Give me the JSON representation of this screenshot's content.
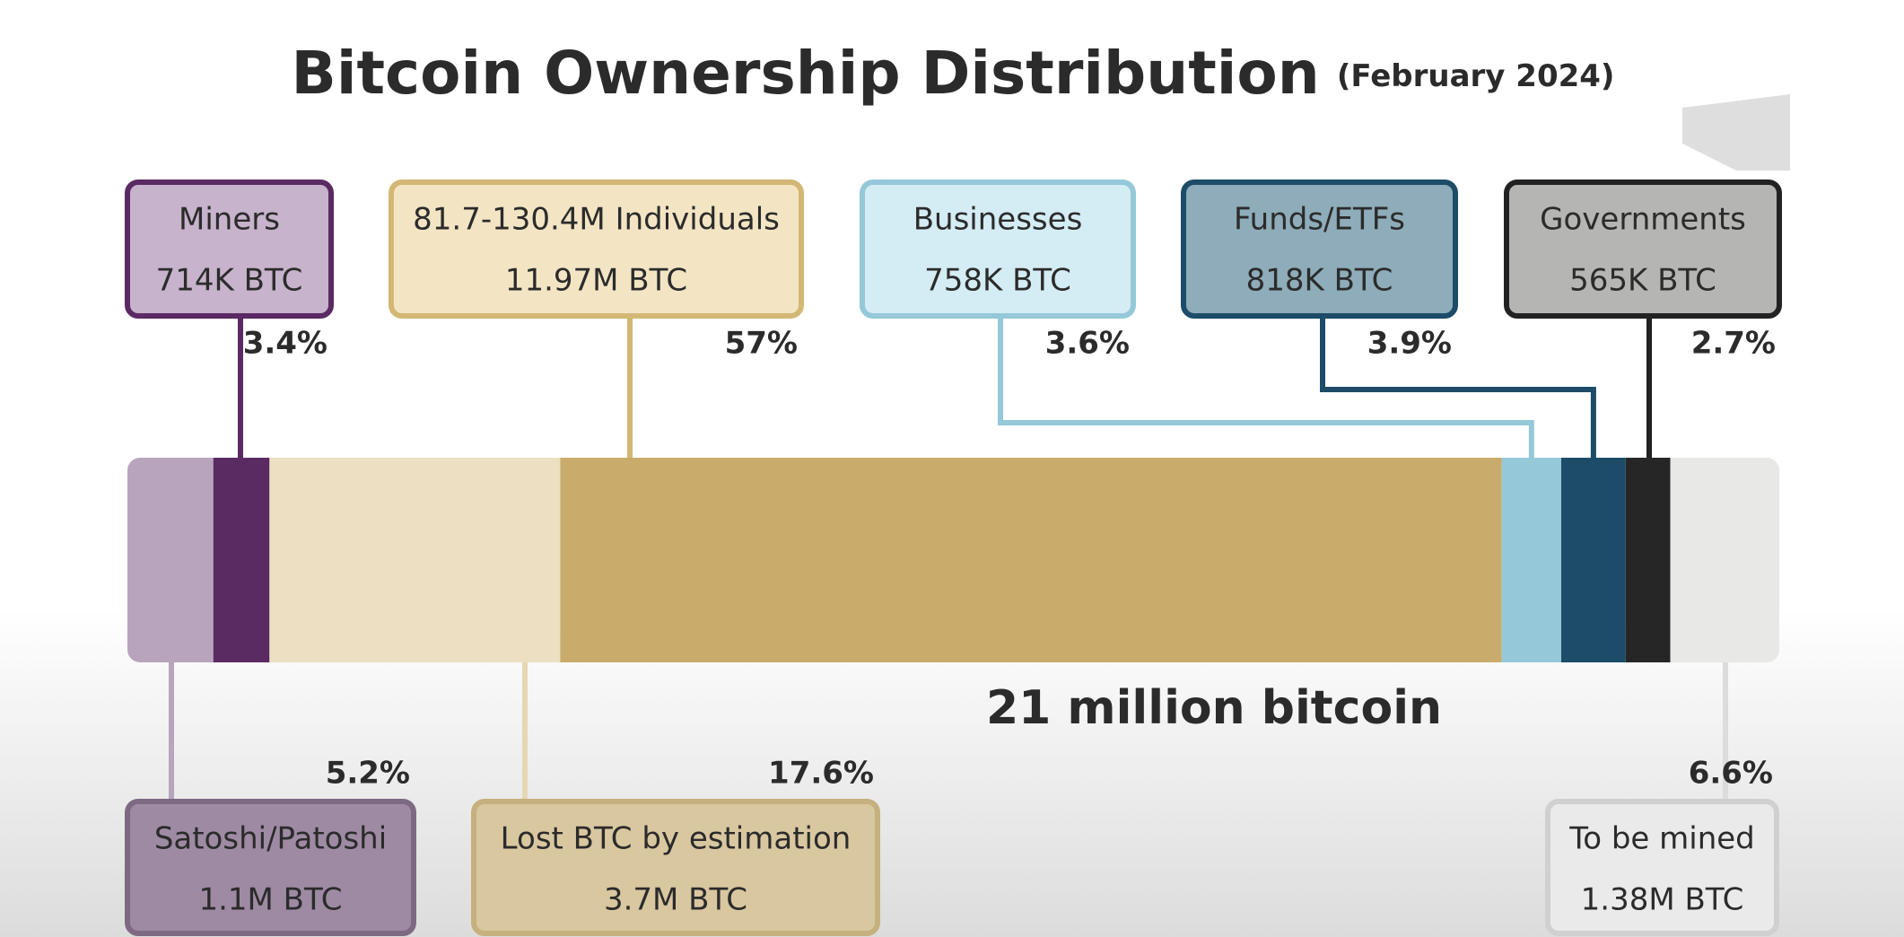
{
  "chart_data": {
    "type": "stacked-bar",
    "title": "Bitcoin Ownership Distribution",
    "subtitle": "(February 2024)",
    "total_label": "21 million bitcoin",
    "series": [
      {
        "name": "Satoshi/Patoshi",
        "amount": "1.1M BTC",
        "color": "#b8a4bd",
        "values": [
          5.2
        ],
        "value_labels": [
          "5.2%"
        ]
      },
      {
        "name": "Miners",
        "amount": "714K BTC",
        "color": "#5a2a63",
        "values": [
          3.4
        ],
        "value_labels": [
          "3.4%"
        ]
      },
      {
        "name": "Lost BTC by estimation",
        "amount": "3.7M BTC",
        "color": "#ecdfc2",
        "values": [
          17.6
        ],
        "value_labels": [
          "17.6%"
        ]
      },
      {
        "name": "81.7-130.4M Individuals",
        "amount": "11.97M BTC",
        "color": "#c9ac6c",
        "values": [
          57
        ],
        "value_labels": [
          "57%"
        ]
      },
      {
        "name": "Businesses",
        "amount": "758K BTC",
        "color": "#95c8d8",
        "values": [
          3.6
        ],
        "value_labels": [
          "3.6%"
        ]
      },
      {
        "name": "Funds/ETFs",
        "amount": "818K BTC",
        "color": "#1c4c68",
        "values": [
          3.9
        ],
        "value_labels": [
          "3.9%"
        ]
      },
      {
        "name": "Governments",
        "amount": "565K BTC",
        "color": "#262626",
        "values": [
          2.7
        ],
        "value_labels": [
          "2.7%"
        ]
      },
      {
        "name": "To be mined",
        "amount": "1.38M BTC",
        "color": "#e8e8e6",
        "values": [
          6.6
        ],
        "value_labels": [
          "6.6%"
        ]
      }
    ]
  }
}
